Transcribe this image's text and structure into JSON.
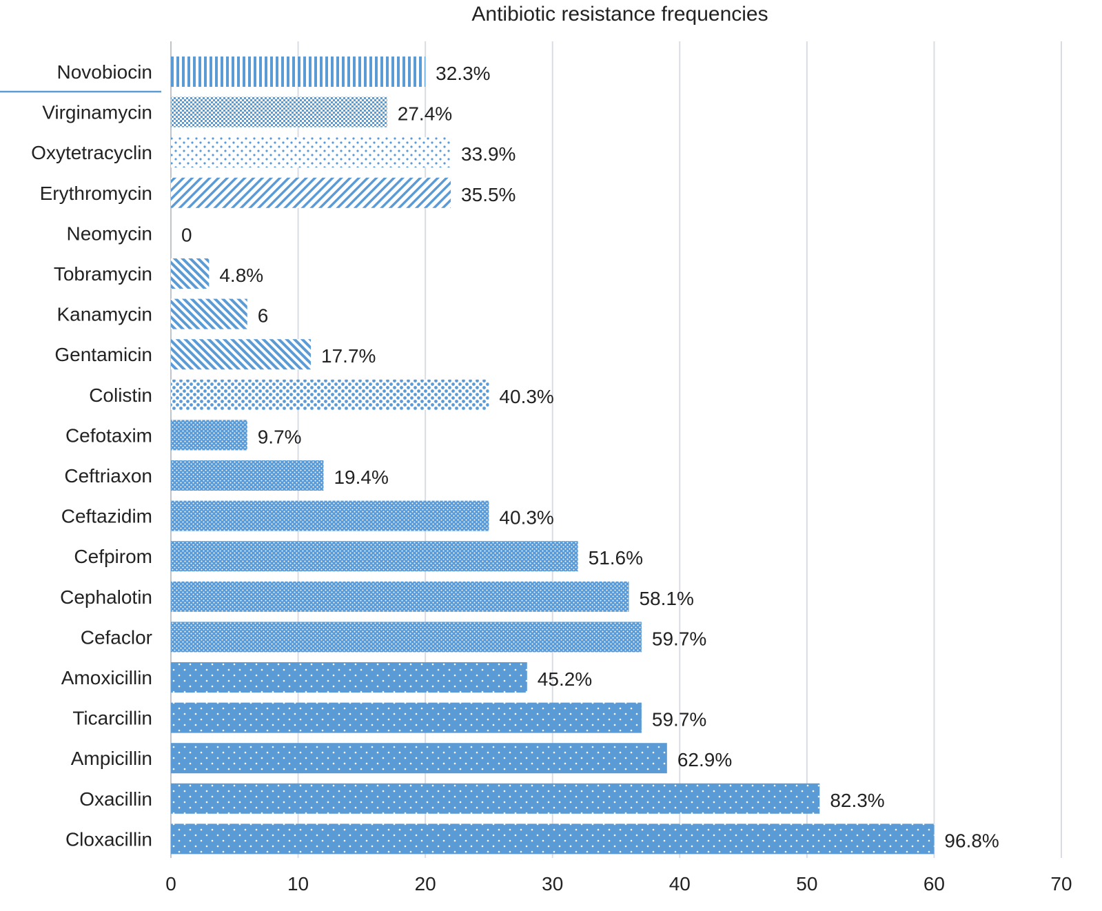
{
  "chart_data": {
    "type": "bar",
    "orientation": "horizontal",
    "title": "Antibiotic resistance frequencies",
    "xlabel": "",
    "ylabel": "",
    "xlim": [
      0,
      70
    ],
    "xticks": [
      0,
      10,
      20,
      30,
      40,
      50,
      60,
      70
    ],
    "grid": true,
    "bar_color": "#5b9bd5",
    "grid_color": "#d9dde3",
    "categories": [
      "Novobiocin",
      "Virginamycin",
      "Oxytetracyclin",
      "Erythromycin",
      "Neomycin",
      "Tobramycin",
      "Kanamycin",
      "Gentamicin",
      "Colistin",
      "Cefotaxim",
      "Ceftriaxon",
      "Ceftazidim",
      "Cefpirom",
      "Cephalotin",
      "Cefaclor",
      "Amoxicillin",
      "Ticarcillin",
      "Ampicillin",
      "Oxacillin",
      "Cloxacillin"
    ],
    "values": [
      20,
      17,
      22,
      22,
      0,
      3,
      6,
      11,
      25,
      6,
      12,
      25,
      32,
      36,
      37,
      28,
      37,
      39,
      51,
      60
    ],
    "data_labels": [
      "32.3%",
      "27.4%",
      "33.9%",
      "35.5%",
      "0",
      "4.8%",
      "6",
      "17.7%",
      "40.3%",
      "9.7%",
      "19.4%",
      "40.3%",
      "51.6%",
      "58.1%",
      "59.7%",
      "45.2%",
      "59.7%",
      "62.9%",
      "82.3%",
      "96.8%"
    ],
    "patterns": [
      "vlines",
      "checker",
      "sparse-dots",
      "fwd-diag",
      "none",
      "back-diag",
      "back-diag",
      "back-diag",
      "dense-dots",
      "fine-dots",
      "fine-dots",
      "fine-dots",
      "fine-dots",
      "fine-dots",
      "fine-dots",
      "white-dots",
      "white-dots",
      "white-dots",
      "white-dots",
      "white-dots"
    ]
  }
}
